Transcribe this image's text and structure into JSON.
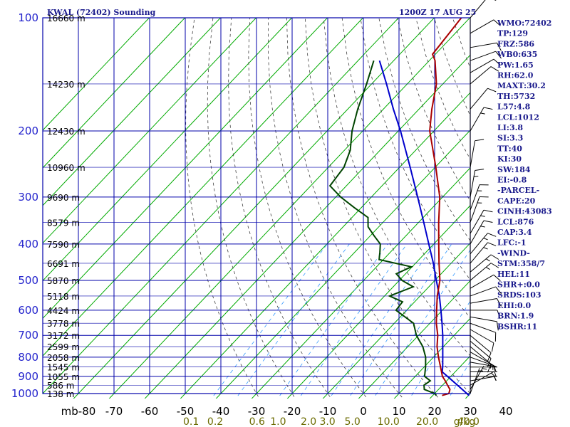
{
  "header": {
    "title_left": "KWAL (72402) Sounding",
    "title_right": "1200Z 17 AUG 25"
  },
  "colors": {
    "grid": "#0000aa",
    "isotherm": "#00aa00",
    "dry_adiabat": "#404040",
    "mixing_ratio": "#3399ff",
    "temperature": "#aa0000",
    "dewpoint": "#004400",
    "parcel": "#0000cc",
    "barb": "#000000",
    "index_text": "#1a1a8c"
  },
  "indices": [
    "WMO:72402",
    "TP:129",
    "FRZ:586",
    "WB0:635",
    "PW:1.65",
    "RH:62.0",
    "MAXT:30.2",
    "TH:5732",
    "L57:4.8",
    "LCL:1012",
    "LI:3.8",
    "SI:3.3",
    "TT:40",
    "KI:30",
    "SW:184",
    "EI:-0.8",
    "-PARCEL-",
    "CAPE:20",
    "CINH:43083",
    "LCL:876",
    "CAP:3.4",
    "LFC:-1",
    "-WIND-",
    "STM:358/7",
    "HEL:11",
    "SHR+:0.0",
    "SRDS:103",
    "EHI:0.0",
    "BRN:1.9",
    "BSHR:11"
  ],
  "chart_data": {
    "type": "skew-t",
    "pressure_axis_unit": "mb",
    "pressure_ticks": [
      100,
      200,
      300,
      400,
      500,
      600,
      700,
      800,
      900,
      1000
    ],
    "pressure_tick_labels": [
      "100",
      "200",
      "300",
      "400",
      "500",
      "600",
      "700",
      "800",
      "900",
      "1000"
    ],
    "temperature_ticks": [
      -80,
      -70,
      -60,
      -50,
      -40,
      -30,
      -20,
      -10,
      0,
      10,
      20,
      30,
      40
    ],
    "temperature_tick_labels": [
      "mb-80",
      "-70",
      "-60",
      "-50",
      "-40",
      "-30",
      "-20",
      "-10",
      "0",
      "10",
      "20",
      "30",
      "40"
    ],
    "mixing_ratio_unit": "g/kg",
    "mixing_ratio_labels": [
      "0.1",
      "0.2",
      "0.6",
      "1.0",
      "2.0",
      "3.0",
      "5.0",
      "10.0",
      "20.0",
      "40.0"
    ],
    "height_labels": [
      {
        "p": 100,
        "label": "16660 m"
      },
      {
        "p": 150,
        "label": "14230 m"
      },
      {
        "p": 200,
        "label": "12430 m"
      },
      {
        "p": 250,
        "label": "10960 m"
      },
      {
        "p": 300,
        "label": "9690 m"
      },
      {
        "p": 350,
        "label": "8579 m"
      },
      {
        "p": 400,
        "label": "7590 m"
      },
      {
        "p": 450,
        "label": "6691 m"
      },
      {
        "p": 500,
        "label": "5870 m"
      },
      {
        "p": 550,
        "label": "5118 m"
      },
      {
        "p": 600,
        "label": "4424 m"
      },
      {
        "p": 650,
        "label": "3778 m"
      },
      {
        "p": 700,
        "label": "3172 m"
      },
      {
        "p": 750,
        "label": "2599 m"
      },
      {
        "p": 800,
        "label": "2058 m"
      },
      {
        "p": 850,
        "label": "1545 m"
      },
      {
        "p": 900,
        "label": "1055 m"
      },
      {
        "p": 950,
        "label": "586 m"
      },
      {
        "p": 1000,
        "label": "138 m"
      }
    ],
    "temperature_profile": [
      {
        "p": 1012,
        "t": 22.6
      },
      {
        "p": 1000,
        "t": 24.0
      },
      {
        "p": 975,
        "t": 23.2
      },
      {
        "p": 950,
        "t": 21.4
      },
      {
        "p": 925,
        "t": 19.6
      },
      {
        "p": 900,
        "t": 17.6
      },
      {
        "p": 850,
        "t": 14.6
      },
      {
        "p": 800,
        "t": 11.4
      },
      {
        "p": 750,
        "t": 8.2
      },
      {
        "p": 700,
        "t": 5.4
      },
      {
        "p": 650,
        "t": 1.8
      },
      {
        "p": 600,
        "t": -1.6
      },
      {
        "p": 550,
        "t": -5.2
      },
      {
        "p": 500,
        "t": -8.6
      },
      {
        "p": 450,
        "t": -13.4
      },
      {
        "p": 400,
        "t": -18.6
      },
      {
        "p": 350,
        "t": -24.4
      },
      {
        "p": 300,
        "t": -30.8
      },
      {
        "p": 250,
        "t": -39.8
      },
      {
        "p": 200,
        "t": -51.2
      },
      {
        "p": 175,
        "t": -56.4
      },
      {
        "p": 150,
        "t": -61.8
      },
      {
        "p": 130,
        "t": -68.4
      },
      {
        "p": 125,
        "t": -70.8
      },
      {
        "p": 100,
        "t": -72.4
      }
    ],
    "dewpoint_profile": [
      {
        "p": 1012,
        "t": 21.0
      },
      {
        "p": 1000,
        "t": 20.0
      },
      {
        "p": 975,
        "t": 16.0
      },
      {
        "p": 950,
        "t": 14.8
      },
      {
        "p": 925,
        "t": 15.4
      },
      {
        "p": 900,
        "t": 12.6
      },
      {
        "p": 850,
        "t": 10.4
      },
      {
        "p": 800,
        "t": 7.8
      },
      {
        "p": 750,
        "t": 4.2
      },
      {
        "p": 700,
        "t": -0.6
      },
      {
        "p": 650,
        "t": -4.6
      },
      {
        "p": 600,
        "t": -13.0
      },
      {
        "p": 570,
        "t": -13.4
      },
      {
        "p": 550,
        "t": -18.6
      },
      {
        "p": 520,
        "t": -14.4
      },
      {
        "p": 500,
        "t": -19.2
      },
      {
        "p": 480,
        "t": -22.6
      },
      {
        "p": 460,
        "t": -20.2
      },
      {
        "p": 440,
        "t": -31.2
      },
      {
        "p": 420,
        "t": -33.0
      },
      {
        "p": 400,
        "t": -35.0
      },
      {
        "p": 380,
        "t": -39.0
      },
      {
        "p": 360,
        "t": -43.0
      },
      {
        "p": 340,
        "t": -45.5
      },
      {
        "p": 320,
        "t": -52.0
      },
      {
        "p": 300,
        "t": -58.6
      },
      {
        "p": 280,
        "t": -64.6
      },
      {
        "p": 250,
        "t": -65.6
      },
      {
        "p": 225,
        "t": -68.4
      },
      {
        "p": 200,
        "t": -73.0
      },
      {
        "p": 175,
        "t": -77.2
      },
      {
        "p": 150,
        "t": -81.4
      },
      {
        "p": 130,
        "t": -85.6
      }
    ],
    "parcel_profile": [
      {
        "p": 1012,
        "t": 30.2
      },
      {
        "p": 950,
        "t": 24.2
      },
      {
        "p": 900,
        "t": 19.0
      },
      {
        "p": 876,
        "t": 16.4
      },
      {
        "p": 850,
        "t": 15.2
      },
      {
        "p": 800,
        "t": 12.6
      },
      {
        "p": 750,
        "t": 9.8
      },
      {
        "p": 700,
        "t": 6.8
      },
      {
        "p": 650,
        "t": 3.4
      },
      {
        "p": 600,
        "t": -0.4
      },
      {
        "p": 550,
        "t": -4.6
      },
      {
        "p": 500,
        "t": -9.6
      },
      {
        "p": 450,
        "t": -15.0
      },
      {
        "p": 400,
        "t": -21.4
      },
      {
        "p": 350,
        "t": -28.6
      },
      {
        "p": 300,
        "t": -37.0
      },
      {
        "p": 250,
        "t": -47.0
      },
      {
        "p": 200,
        "t": -59.4
      },
      {
        "p": 175,
        "t": -67.2
      },
      {
        "p": 150,
        "t": -75.8
      },
      {
        "p": 130,
        "t": -84.0
      }
    ],
    "wind_barbs": [
      {
        "p": 1000,
        "dir": 20,
        "spd": 5
      },
      {
        "p": 975,
        "dir": 30,
        "spd": 5
      },
      {
        "p": 950,
        "dir": 60,
        "spd": 5
      },
      {
        "p": 925,
        "dir": 80,
        "spd": 5
      },
      {
        "p": 900,
        "dir": 90,
        "spd": 5
      },
      {
        "p": 875,
        "dir": 90,
        "spd": 5
      },
      {
        "p": 850,
        "dir": 90,
        "spd": 5
      },
      {
        "p": 825,
        "dir": 100,
        "spd": 5
      },
      {
        "p": 800,
        "dir": 110,
        "spd": 5
      },
      {
        "p": 775,
        "dir": 120,
        "spd": 5
      },
      {
        "p": 750,
        "dir": 130,
        "spd": 10
      },
      {
        "p": 725,
        "dir": 130,
        "spd": 10
      },
      {
        "p": 700,
        "dir": 130,
        "spd": 10
      },
      {
        "p": 675,
        "dir": 120,
        "spd": 10
      },
      {
        "p": 650,
        "dir": 110,
        "spd": 10
      },
      {
        "p": 625,
        "dir": 100,
        "spd": 10
      },
      {
        "p": 600,
        "dir": 90,
        "spd": 10
      },
      {
        "p": 575,
        "dir": 80,
        "spd": 10
      },
      {
        "p": 550,
        "dir": 70,
        "spd": 10
      },
      {
        "p": 525,
        "dir": 60,
        "spd": 10
      },
      {
        "p": 500,
        "dir": 50,
        "spd": 15
      },
      {
        "p": 475,
        "dir": 50,
        "spd": 15
      },
      {
        "p": 450,
        "dir": 40,
        "spd": 15
      },
      {
        "p": 425,
        "dir": 40,
        "spd": 15
      },
      {
        "p": 400,
        "dir": 30,
        "spd": 15
      },
      {
        "p": 375,
        "dir": 30,
        "spd": 15
      },
      {
        "p": 350,
        "dir": 20,
        "spd": 15
      },
      {
        "p": 325,
        "dir": 20,
        "spd": 15
      },
      {
        "p": 300,
        "dir": 10,
        "spd": 15
      },
      {
        "p": 250,
        "dir": 10,
        "spd": 10
      },
      {
        "p": 200,
        "dir": 30,
        "spd": 15
      },
      {
        "p": 175,
        "dir": 40,
        "spd": 10
      },
      {
        "p": 150,
        "dir": 50,
        "spd": 10
      },
      {
        "p": 140,
        "dir": 60,
        "spd": 10
      },
      {
        "p": 130,
        "dir": 70,
        "spd": 10
      },
      {
        "p": 120,
        "dir": 80,
        "spd": 10
      },
      {
        "p": 110,
        "dir": 60,
        "spd": 10
      },
      {
        "p": 100,
        "dir": 40,
        "spd": 10
      }
    ]
  }
}
